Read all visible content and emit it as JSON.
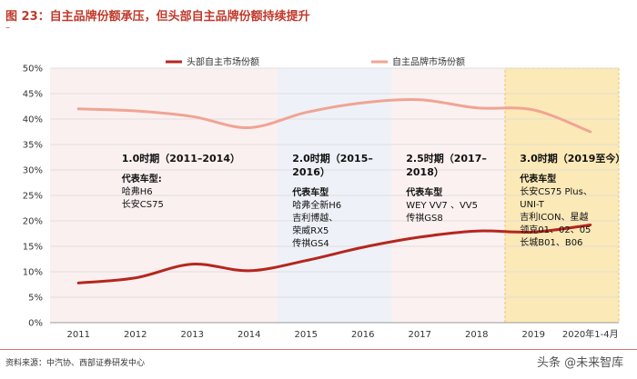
{
  "header": {
    "title": "图 23：自主品牌份额承压，但头部自主品牌份额持续提升",
    "dash": "–"
  },
  "footer": {
    "source": "资料来源：中汽协、西部证券研发中心",
    "watermark": "头条 @未来智库"
  },
  "colors": {
    "series_dark": "#b5261e",
    "series_light": "#f0a493",
    "era1_bg": "#fbf0f0",
    "era2_bg": "#eef1f8",
    "era3_bg": "#fcf1f1",
    "era4_bg": "#fbe9b7"
  },
  "chart_data": {
    "type": "line",
    "categories": [
      "2011",
      "2012",
      "2013",
      "2014",
      "2015",
      "2016",
      "2017",
      "2018",
      "2019",
      "2020年1-4月"
    ],
    "ylim": [
      0,
      50
    ],
    "yticks": [
      "0%",
      "5%",
      "10%",
      "15%",
      "20%",
      "25%",
      "30%",
      "35%",
      "40%",
      "45%",
      "50%"
    ],
    "series": [
      {
        "name": "头部自主市场份额",
        "color": "#b5261e",
        "values": [
          7.8,
          8.8,
          11.5,
          10.2,
          12.2,
          14.8,
          16.8,
          18.0,
          17.8,
          19.2
        ]
      },
      {
        "name": "自主品牌市场份额",
        "color": "#f0a493",
        "values": [
          42.0,
          41.6,
          40.5,
          38.3,
          41.3,
          43.2,
          43.8,
          42.2,
          41.8,
          37.5
        ]
      }
    ],
    "eras": [
      {
        "title": "1.0时期（2011–2014）",
        "title_line2": "",
        "models_label": "代表车型:",
        "models": [
          "哈弗H6",
          "长安CS75"
        ]
      },
      {
        "title": "2.0时期（2015–",
        "title_line2": "2016）",
        "models_label": "代表车型",
        "models": [
          "哈弗全新H6",
          "吉利博越、",
          "荣威RX5",
          "传祺GS4"
        ]
      },
      {
        "title": "2.5时期（2017–",
        "title_line2": "2018）",
        "models_label": "代表车型",
        "models": [
          "WEY VV7 、VV5",
          "传祺GS8"
        ]
      },
      {
        "title": "3.0时期（2019至今）",
        "title_line2": "",
        "models_label": "代表车型",
        "models": [
          "长安CS75 Plus、",
          "UNI-T",
          "吉利ICON、星越",
          "领克01、02、05",
          "长城B01、B06"
        ]
      }
    ]
  }
}
